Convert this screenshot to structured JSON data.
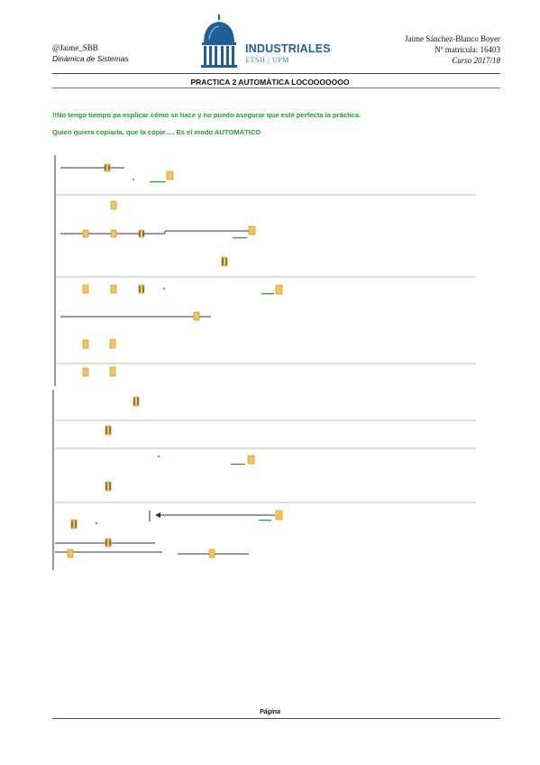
{
  "header": {
    "left_line1": "@Jaime_SBB",
    "left_line2": "Dinámica de Sistemas",
    "right_line1": "Jaime Sánchez-Blanco Boyer",
    "right_line2": "Nº matrícula: 16403",
    "right_line3": "Curso 2017/18",
    "logo_text": "INDUSTRIALES",
    "logo_sub": "ETSII | UPM"
  },
  "title": "PRACTICA 2 AUTOMÁTICA LOCOOOOOOO",
  "notes": [
    "!!No tengo tiempo pa explicar cómo se hace y no puedo asegurar que esté perfecta la práctica.",
    "Quien quiera copiarla, que la copie…. Es el modo AUTOMÁTICO"
  ],
  "footer": {
    "page_label": "Página"
  },
  "colors": {
    "logo_blue": "#1f5e96",
    "note_green": "#1aa321",
    "contact_fill": "#f5c55b"
  }
}
